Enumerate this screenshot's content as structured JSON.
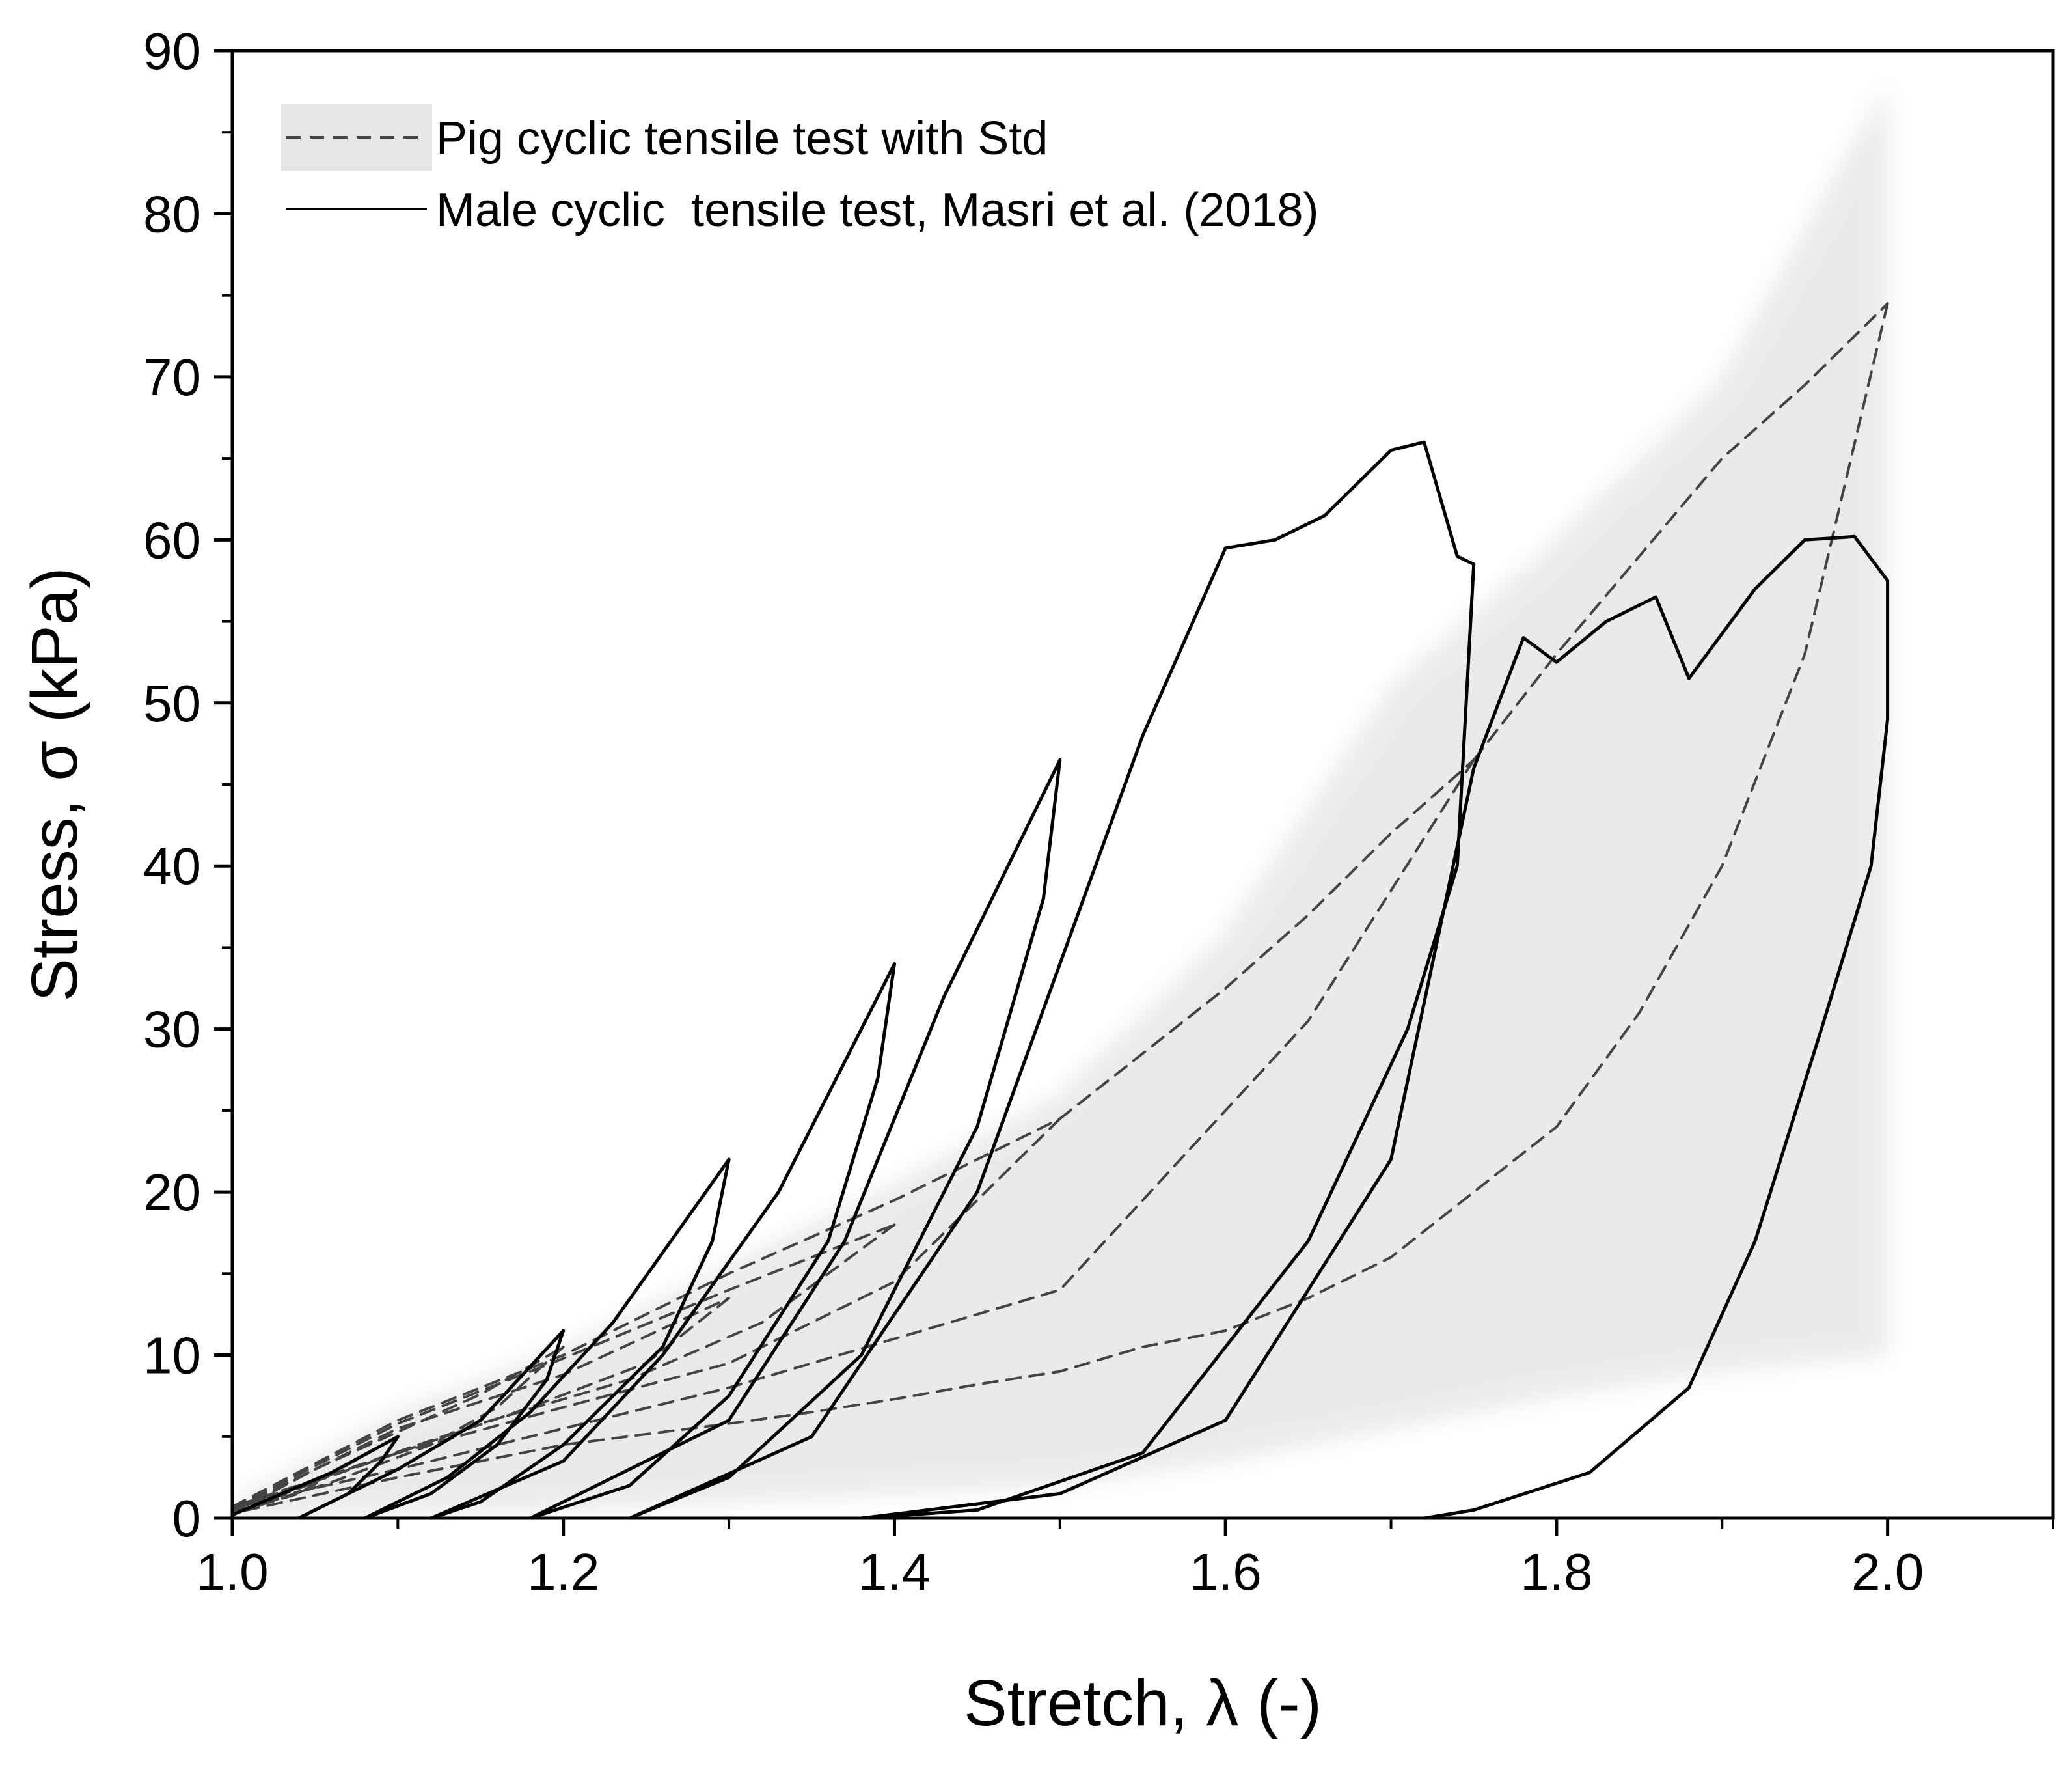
{
  "chart_data": {
    "type": "line",
    "title": "",
    "xlabel": "Stretch, λ (-)",
    "ylabel": "Stress, σ (kPa)",
    "xlim": [
      1.0,
      2.1
    ],
    "ylim": [
      0,
      90
    ],
    "x_ticks": [
      1.0,
      1.2,
      1.4,
      1.6,
      1.8,
      2.0
    ],
    "x_tick_labels": [
      "1.0",
      "1.2",
      "1.4",
      "1.6",
      "1.8",
      "2.0"
    ],
    "y_ticks": [
      0,
      10,
      20,
      30,
      40,
      50,
      60,
      70,
      80,
      90
    ],
    "y_tick_labels": [
      "0",
      "10",
      "20",
      "30",
      "40",
      "50",
      "60",
      "70",
      "80",
      "90"
    ],
    "grid": false,
    "legend_position": "top-left",
    "legend": [
      {
        "label": "Pig cyclic tensile test with Std",
        "style": "dashed",
        "band": true
      },
      {
        "label": "Male cyclic  tensile test, Masri et al. (2018)",
        "style": "solid",
        "band": false
      }
    ],
    "series": [
      {
        "name": "Pig cyclic tensile test with Std",
        "style": "dashed",
        "color": "#444444",
        "cycles": [
          {
            "loading": [
              [
                1.0,
                0.3
              ],
              [
                1.05,
                2.2
              ],
              [
                1.1,
                5.0
              ]
            ],
            "unloading": [
              [
                1.1,
                5.0
              ],
              [
                1.07,
                3.3
              ],
              [
                1.04,
                1.5
              ],
              [
                1.0,
                0.3
              ]
            ]
          },
          {
            "loading": [
              [
                1.0,
                0.3
              ],
              [
                1.05,
                3.0
              ],
              [
                1.1,
                5.3
              ],
              [
                1.15,
                7.6
              ],
              [
                1.2,
                10.5
              ]
            ],
            "unloading": [
              [
                1.2,
                10.5
              ],
              [
                1.16,
                6.8
              ],
              [
                1.12,
                4.5
              ],
              [
                1.06,
                2.2
              ],
              [
                1.0,
                0.3
              ]
            ]
          },
          {
            "loading": [
              [
                1.0,
                0.5
              ],
              [
                1.1,
                5.5
              ],
              [
                1.2,
                8.8
              ],
              [
                1.3,
                13.5
              ]
            ],
            "unloading": [
              [
                1.3,
                13.5
              ],
              [
                1.25,
                9.5
              ],
              [
                1.18,
                6.8
              ],
              [
                1.1,
                4.0
              ],
              [
                1.0,
                0.5
              ]
            ]
          },
          {
            "loading": [
              [
                1.0,
                0.6
              ],
              [
                1.1,
                5.8
              ],
              [
                1.2,
                9.8
              ],
              [
                1.3,
                14.0
              ],
              [
                1.4,
                18.0
              ]
            ],
            "unloading": [
              [
                1.4,
                18.0
              ],
              [
                1.32,
                12.0
              ],
              [
                1.24,
                8.5
              ],
              [
                1.15,
                5.8
              ],
              [
                1.0,
                0.6
              ]
            ]
          },
          {
            "loading": [
              [
                1.0,
                0.7
              ],
              [
                1.1,
                6.0
              ],
              [
                1.2,
                10.0
              ],
              [
                1.3,
                15.0
              ],
              [
                1.4,
                19.5
              ],
              [
                1.5,
                24.5
              ]
            ],
            "unloading": [
              [
                1.5,
                24.5
              ],
              [
                1.4,
                14.5
              ],
              [
                1.3,
                9.5
              ],
              [
                1.2,
                6.8
              ],
              [
                1.1,
                4.0
              ],
              [
                1.0,
                0.7
              ]
            ]
          },
          {
            "loading": [
              [
                1.5,
                24.5
              ],
              [
                1.55,
                28.5
              ],
              [
                1.6,
                32.5
              ],
              [
                1.65,
                37.0
              ],
              [
                1.7,
                42.0
              ],
              [
                1.75,
                46.5
              ]
            ],
            "unloading": [
              [
                1.75,
                46.5
              ],
              [
                1.65,
                30.5
              ],
              [
                1.55,
                19.5
              ],
              [
                1.5,
                14.0
              ],
              [
                1.4,
                11.0
              ],
              [
                1.3,
                8.0
              ],
              [
                1.2,
                5.5
              ],
              [
                1.1,
                3.0
              ],
              [
                1.0,
                0.7
              ]
            ]
          },
          {
            "loading": [
              [
                1.75,
                46.5
              ],
              [
                1.8,
                53.0
              ],
              [
                1.85,
                59.0
              ],
              [
                1.9,
                65.0
              ],
              [
                1.95,
                69.5
              ],
              [
                2.0,
                74.5
              ]
            ],
            "unloading": [
              [
                2.0,
                74.5
              ],
              [
                1.95,
                53.0
              ],
              [
                1.9,
                40.0
              ],
              [
                1.85,
                31.0
              ],
              [
                1.8,
                24.0
              ],
              [
                1.75,
                20.0
              ],
              [
                1.7,
                16.0
              ],
              [
                1.65,
                13.5
              ],
              [
                1.6,
                11.5
              ],
              [
                1.55,
                10.5
              ],
              [
                1.5,
                9.0
              ],
              [
                1.45,
                8.2
              ],
              [
                1.4,
                7.3
              ],
              [
                1.35,
                6.5
              ],
              [
                1.3,
                5.8
              ],
              [
                1.2,
                4.5
              ],
              [
                1.1,
                2.5
              ],
              [
                1.0,
                0.3
              ]
            ]
          }
        ]
      },
      {
        "name": "Male cyclic  tensile test, Masri et al. (2018)",
        "style": "solid",
        "color": "#000000",
        "cycles": [
          {
            "loading": [
              [
                1.0,
                0.2
              ],
              [
                1.03,
                1.5
              ],
              [
                1.06,
                2.8
              ],
              [
                1.1,
                5.0
              ]
            ],
            "unloading": [
              [
                1.1,
                5.0
              ],
              [
                1.09,
                3.5
              ],
              [
                1.07,
                1.5
              ],
              [
                1.05,
                0.5
              ],
              [
                1.04,
                0.0
              ]
            ]
          },
          {
            "loading": [
              [
                1.04,
                0.0
              ],
              [
                1.07,
                1.5
              ],
              [
                1.1,
                3.0
              ],
              [
                1.15,
                6.0
              ],
              [
                1.2,
                11.5
              ]
            ],
            "unloading": [
              [
                1.2,
                11.5
              ],
              [
                1.19,
                8.5
              ],
              [
                1.16,
                4.5
              ],
              [
                1.12,
                1.5
              ],
              [
                1.08,
                0.0
              ]
            ]
          },
          {
            "loading": [
              [
                1.08,
                0.0
              ],
              [
                1.13,
                2.5
              ],
              [
                1.18,
                6.5
              ],
              [
                1.23,
                12.0
              ],
              [
                1.3,
                22.0
              ]
            ],
            "unloading": [
              [
                1.3,
                22.0
              ],
              [
                1.29,
                17.0
              ],
              [
                1.26,
                10.5
              ],
              [
                1.2,
                4.5
              ],
              [
                1.15,
                1.0
              ],
              [
                1.12,
                0.0
              ]
            ]
          },
          {
            "loading": [
              [
                1.12,
                0.0
              ],
              [
                1.2,
                3.5
              ],
              [
                1.26,
                10.0
              ],
              [
                1.33,
                20.0
              ],
              [
                1.4,
                34.0
              ]
            ],
            "unloading": [
              [
                1.4,
                34.0
              ],
              [
                1.39,
                27.0
              ],
              [
                1.36,
                17.0
              ],
              [
                1.3,
                7.5
              ],
              [
                1.24,
                2.0
              ],
              [
                1.18,
                0.0
              ]
            ]
          },
          {
            "loading": [
              [
                1.18,
                0.0
              ],
              [
                1.3,
                6.0
              ],
              [
                1.37,
                17.0
              ],
              [
                1.43,
                32.0
              ],
              [
                1.5,
                46.5
              ]
            ],
            "unloading": [
              [
                1.5,
                46.5
              ],
              [
                1.49,
                38.0
              ],
              [
                1.45,
                24.0
              ],
              [
                1.38,
                10.0
              ],
              [
                1.3,
                2.5
              ],
              [
                1.24,
                0.0
              ]
            ]
          },
          {
            "loading": [
              [
                1.24,
                0.0
              ],
              [
                1.35,
                5.0
              ],
              [
                1.45,
                20.0
              ],
              [
                1.55,
                48.0
              ],
              [
                1.6,
                59.5
              ],
              [
                1.63,
                60.0
              ],
              [
                1.66,
                61.5
              ],
              [
                1.7,
                65.5
              ],
              [
                1.72,
                66.0
              ],
              [
                1.74,
                59.0
              ],
              [
                1.75,
                58.5
              ]
            ],
            "unloading": [
              [
                1.75,
                58.5
              ],
              [
                1.74,
                40.0
              ],
              [
                1.71,
                30.0
              ],
              [
                1.65,
                17.0
              ],
              [
                1.55,
                4.0
              ],
              [
                1.45,
                0.5
              ],
              [
                1.38,
                0.0
              ]
            ]
          },
          {
            "loading": [
              [
                1.38,
                0.0
              ],
              [
                1.5,
                1.5
              ],
              [
                1.6,
                6.0
              ],
              [
                1.7,
                22.0
              ],
              [
                1.75,
                46.0
              ],
              [
                1.78,
                54.0
              ],
              [
                1.8,
                52.5
              ],
              [
                1.83,
                55.0
              ],
              [
                1.86,
                56.5
              ],
              [
                1.88,
                51.5
              ],
              [
                1.92,
                57.0
              ],
              [
                1.95,
                60.0
              ],
              [
                1.98,
                60.2
              ],
              [
                2.0,
                57.5
              ]
            ],
            "unloading": [
              [
                2.0,
                57.5
              ],
              [
                2.0,
                49.0
              ],
              [
                1.99,
                40.0
              ],
              [
                1.96,
                30.0
              ],
              [
                1.92,
                17.0
              ],
              [
                1.88,
                8.0
              ],
              [
                1.82,
                2.8
              ],
              [
                1.75,
                0.5
              ],
              [
                1.72,
                0.0
              ]
            ]
          }
        ]
      }
    ],
    "std_band": {
      "description": "grey shaded standard deviation region",
      "upper": [
        [
          1.0,
          1.0
        ],
        [
          1.1,
          6.5
        ],
        [
          1.2,
          10.5
        ],
        [
          1.3,
          15.5
        ],
        [
          1.4,
          20.5
        ],
        [
          1.5,
          26.0
        ],
        [
          1.6,
          36.0
        ],
        [
          1.7,
          51.0
        ],
        [
          1.8,
          60.0
        ],
        [
          1.9,
          70.0
        ],
        [
          2.0,
          88.0
        ]
      ],
      "lower": [
        [
          2.0,
          10.0
        ],
        [
          1.9,
          9.0
        ],
        [
          1.8,
          7.5
        ],
        [
          1.7,
          5.5
        ],
        [
          1.6,
          3.5
        ],
        [
          1.5,
          2.0
        ],
        [
          1.4,
          1.5
        ],
        [
          1.3,
          1.0
        ],
        [
          1.2,
          0.5
        ],
        [
          1.1,
          0.3
        ],
        [
          1.0,
          0.0
        ]
      ]
    }
  }
}
